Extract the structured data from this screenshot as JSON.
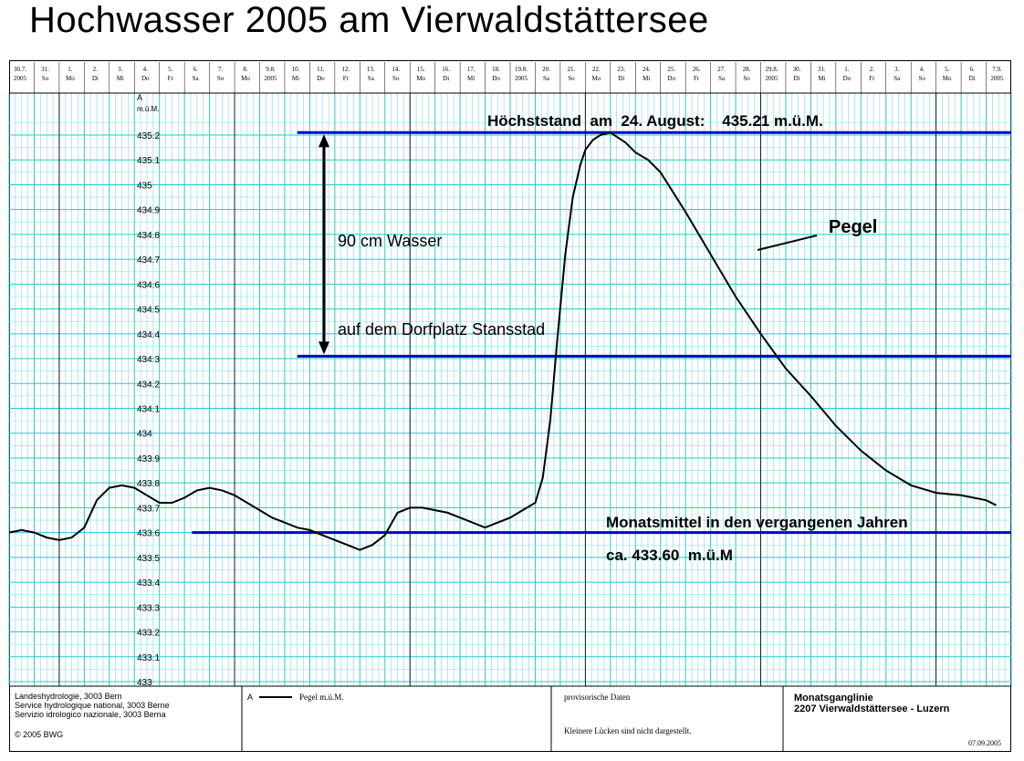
{
  "title": "Hochwasser 2005  am Vierwaldstättersee",
  "colors": {
    "grid_minor": "#8fe0e0",
    "grid_day": "#2cc8c8",
    "ref_line": "#0000cc",
    "series": "#000000"
  },
  "chart_data": {
    "type": "line",
    "title": "Hochwasser 2005  am Vierwaldstättersee",
    "ylabel": "A",
    "yunit": "m.ü.M.",
    "ylim": [
      433.0,
      435.25
    ],
    "y_ticks": [
      "435.2",
      "435.1",
      "435",
      "434.9",
      "434.8",
      "434.7",
      "434.6",
      "434.5",
      "434.4",
      "434.3",
      "434.2",
      "434.1",
      "434",
      "433.9",
      "433.8",
      "433.7",
      "433.6",
      "433.5",
      "433.4",
      "433.3",
      "433.2",
      "433.1",
      "433"
    ],
    "xlim": [
      0,
      40
    ],
    "x_unit": "days from 30.7.2005",
    "x_ticks": [
      {
        "top": "30.7.",
        "bot": "2005"
      },
      {
        "top": "31.",
        "bot": "So"
      },
      {
        "top": "1.",
        "bot": "Mo"
      },
      {
        "top": "2.",
        "bot": "Di"
      },
      {
        "top": "3.",
        "bot": "Mi"
      },
      {
        "top": "4.",
        "bot": "Do"
      },
      {
        "top": "5.",
        "bot": "Fr"
      },
      {
        "top": "6.",
        "bot": "Sa"
      },
      {
        "top": "7.",
        "bot": "So"
      },
      {
        "top": "8.",
        "bot": "Mo"
      },
      {
        "top": "9.8.",
        "bot": "2005"
      },
      {
        "top": "10.",
        "bot": "Mi"
      },
      {
        "top": "11.",
        "bot": "Do"
      },
      {
        "top": "12.",
        "bot": "Fr"
      },
      {
        "top": "13.",
        "bot": "Sa"
      },
      {
        "top": "14.",
        "bot": "So"
      },
      {
        "top": "15.",
        "bot": "Mo"
      },
      {
        "top": "16.",
        "bot": "Di"
      },
      {
        "top": "17.",
        "bot": "Mi"
      },
      {
        "top": "18.",
        "bot": "Do"
      },
      {
        "top": "19.8.",
        "bot": "2005"
      },
      {
        "top": "20.",
        "bot": "Sa"
      },
      {
        "top": "21.",
        "bot": "So"
      },
      {
        "top": "22.",
        "bot": "Mo"
      },
      {
        "top": "23.",
        "bot": "Di"
      },
      {
        "top": "24.",
        "bot": "Mi"
      },
      {
        "top": "25.",
        "bot": "Do"
      },
      {
        "top": "26.",
        "bot": "Fr"
      },
      {
        "top": "27.",
        "bot": "Sa"
      },
      {
        "top": "28.",
        "bot": "So"
      },
      {
        "top": "29.8.",
        "bot": "2005"
      },
      {
        "top": "30.",
        "bot": "Di"
      },
      {
        "top": "31.",
        "bot": "Mi"
      },
      {
        "top": "1.",
        "bot": "Do"
      },
      {
        "top": "2.",
        "bot": "Fr"
      },
      {
        "top": "3.",
        "bot": "Sa"
      },
      {
        "top": "4.",
        "bot": "So"
      },
      {
        "top": "5.",
        "bot": "Mo"
      },
      {
        "top": "6.",
        "bot": "Di"
      },
      {
        "top": "7.9.",
        "bot": "2005"
      }
    ],
    "series": [
      {
        "name": "Pegel m.ü.M.",
        "x": [
          0,
          0.5,
          1,
          1.5,
          2,
          2.5,
          3,
          3.5,
          4,
          4.5,
          5,
          5.5,
          6,
          6.5,
          7,
          7.5,
          8,
          8.5,
          9,
          9.5,
          10,
          10.5,
          11,
          11.5,
          12,
          12.5,
          13,
          13.5,
          14,
          14.5,
          15,
          15.5,
          16,
          16.5,
          17,
          17.5,
          18,
          18.5,
          19,
          19.5,
          20,
          20.5,
          21,
          21.3,
          21.6,
          21.9,
          22.2,
          22.5,
          22.8,
          23,
          23.3,
          23.6,
          24,
          24.3,
          24.6,
          25,
          25.5,
          26,
          27,
          28,
          29,
          30,
          31,
          32,
          33,
          34,
          35,
          36,
          37,
          38,
          39,
          39.4
        ],
        "values": [
          433.6,
          433.61,
          433.6,
          433.58,
          433.57,
          433.58,
          433.62,
          433.73,
          433.78,
          433.79,
          433.78,
          433.75,
          433.72,
          433.72,
          433.74,
          433.77,
          433.78,
          433.77,
          433.75,
          433.72,
          433.69,
          433.66,
          433.64,
          433.62,
          433.61,
          433.59,
          433.57,
          433.55,
          433.53,
          433.55,
          433.59,
          433.68,
          433.7,
          433.7,
          433.69,
          433.68,
          433.66,
          433.64,
          433.62,
          433.64,
          433.66,
          433.69,
          433.72,
          433.82,
          434.05,
          434.4,
          434.72,
          434.95,
          435.08,
          435.14,
          435.18,
          435.2,
          435.21,
          435.19,
          435.17,
          435.13,
          435.1,
          435.05,
          434.89,
          434.72,
          434.55,
          434.4,
          434.26,
          434.15,
          434.03,
          433.93,
          433.85,
          433.79,
          433.76,
          433.75,
          433.73,
          433.71
        ]
      }
    ],
    "reference_lines": [
      {
        "value": 435.21,
        "x_from": 11.5,
        "label": "Höchststand  am  24. August:    435.21 m.ü.M."
      },
      {
        "value": 434.31,
        "x_from": 11.5,
        "label": ""
      },
      {
        "value": 433.6,
        "x_from": 7.3,
        "label": "Monatsmittel in den vergangenen Jahren",
        "sublabel": "ca. 433.60  m.ü.M"
      }
    ],
    "annotations": {
      "span_label": "90 cm  Wasser",
      "span_sublabel": "auf dem Dorfplatz Stansstad",
      "pegel_label": "Pegel"
    },
    "grid": true
  },
  "footer": {
    "org_lines": [
      "Landeshydrologie, 3003 Bern",
      "Service hydrologique national, 3003 Berne",
      "Servizio idrologico nazionale, 3003 Berna"
    ],
    "copyright": "© 2005 BWG",
    "legend_letter": "A",
    "legend_text": "Pegel m.ü.M.",
    "provisional": "provisorische Daten",
    "gaps_note": "Kleinere Lücken sind nicht dargestellt.",
    "chart_kind": "Monatsganglinie",
    "station": "2207 Vierwaldstättersee - Luzern",
    "date": "07.09.2005"
  }
}
